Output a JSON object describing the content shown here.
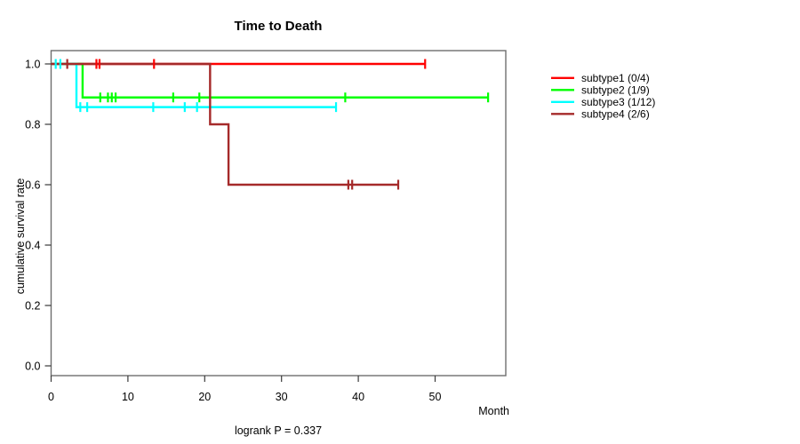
{
  "chart_data": {
    "type": "line",
    "variant": "kaplan-meier-step",
    "title": "Time to Death",
    "xlabel": "Month",
    "ylabel": "cumulative survival rate",
    "annotation": "logrank P = 0.337",
    "xlim": [
      0,
      59
    ],
    "ylim": [
      0,
      1.0
    ],
    "xticks": [
      0,
      10,
      20,
      30,
      40,
      50
    ],
    "yticks": [
      "0.0",
      "0.2",
      "0.4",
      "0.6",
      "0.8",
      "1.0"
    ],
    "grid": false,
    "legend_position": "right-outside",
    "series": [
      {
        "name": "subtype1 (0/4)",
        "color": "#ff0000",
        "steps": [
          {
            "x": 0,
            "y": 1.0
          },
          {
            "x": 48.7,
            "y": 1.0
          }
        ],
        "censors": [
          {
            "x": 5.9,
            "y": 1.0
          },
          {
            "x": 6.3,
            "y": 1.0
          },
          {
            "x": 13.4,
            "y": 1.0
          },
          {
            "x": 48.7,
            "y": 1.0
          }
        ]
      },
      {
        "name": "subtype2 (1/9)",
        "color": "#00ff00",
        "steps": [
          {
            "x": 0,
            "y": 1.0
          },
          {
            "x": 4.1,
            "y": 1.0
          },
          {
            "x": 4.1,
            "y": 0.889
          },
          {
            "x": 56.9,
            "y": 0.889
          }
        ],
        "censors": [
          {
            "x": 6.4,
            "y": 0.889
          },
          {
            "x": 7.4,
            "y": 0.889
          },
          {
            "x": 7.9,
            "y": 0.889
          },
          {
            "x": 8.4,
            "y": 0.889
          },
          {
            "x": 15.9,
            "y": 0.889
          },
          {
            "x": 19.3,
            "y": 0.889
          },
          {
            "x": 38.3,
            "y": 0.889
          },
          {
            "x": 56.9,
            "y": 0.889
          }
        ]
      },
      {
        "name": "subtype3 (1/12)",
        "color": "#00ffff",
        "steps": [
          {
            "x": 0,
            "y": 1.0
          },
          {
            "x": 3.3,
            "y": 1.0
          },
          {
            "x": 3.3,
            "y": 0.857
          },
          {
            "x": 37.1,
            "y": 0.857
          }
        ],
        "censors": [
          {
            "x": 0.6,
            "y": 1.0
          },
          {
            "x": 1.2,
            "y": 1.0
          },
          {
            "x": 3.8,
            "y": 0.857
          },
          {
            "x": 4.7,
            "y": 0.857
          },
          {
            "x": 13.3,
            "y": 0.857
          },
          {
            "x": 17.4,
            "y": 0.857
          },
          {
            "x": 19.0,
            "y": 0.857
          },
          {
            "x": 37.1,
            "y": 0.857
          }
        ]
      },
      {
        "name": "subtype4 (2/6)",
        "color": "#a52a2a",
        "steps": [
          {
            "x": 0,
            "y": 1.0
          },
          {
            "x": 20.7,
            "y": 1.0
          },
          {
            "x": 20.7,
            "y": 0.8
          },
          {
            "x": 23.1,
            "y": 0.8
          },
          {
            "x": 23.1,
            "y": 0.6
          },
          {
            "x": 45.2,
            "y": 0.6
          }
        ],
        "censors": [
          {
            "x": 2.1,
            "y": 1.0
          },
          {
            "x": 38.7,
            "y": 0.6
          },
          {
            "x": 39.2,
            "y": 0.6
          },
          {
            "x": 45.2,
            "y": 0.6
          }
        ]
      }
    ]
  }
}
